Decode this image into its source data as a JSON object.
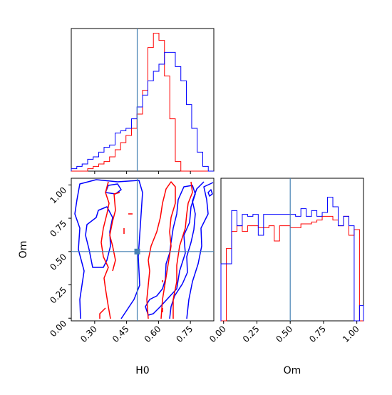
{
  "chart_data": {
    "type": "corner",
    "parameters": [
      "H0",
      "Om"
    ],
    "truths": {
      "H0": 0.5,
      "Om": 0.5
    },
    "truth_color": "#4682b4",
    "series_colors": {
      "red": "#ff0000",
      "blue": "#0000ff"
    },
    "ranges": {
      "H0": [
        0.19,
        0.86
      ],
      "Om": [
        -0.02,
        1.05
      ]
    },
    "panels": [
      {
        "id": "hist-H0",
        "type": "histogram",
        "parameter": "H0",
        "bin_edges": [
          0.19,
          0.216,
          0.241,
          0.267,
          0.293,
          0.319,
          0.344,
          0.37,
          0.396,
          0.422,
          0.447,
          0.473,
          0.499,
          0.525,
          0.55,
          0.576,
          0.602,
          0.628,
          0.653,
          0.679,
          0.705,
          0.731,
          0.756,
          0.782,
          0.808,
          0.834,
          0.86
        ],
        "series": [
          {
            "color": "#ff0000",
            "heights": [
              0,
              0,
              0,
              1,
              2,
              3,
              4,
              6,
              9,
              12,
              15,
              18,
              24,
              34,
              52,
              58,
              55,
              40,
              22,
              4,
              0,
              0,
              0,
              0,
              0,
              0
            ]
          },
          {
            "color": "#0000ff",
            "heights": [
              1,
              2,
              3,
              5,
              6,
              8,
              10,
              11,
              16,
              17,
              18,
              22,
              27,
              32,
              38,
              42,
              45,
              50,
              50,
              44,
              38,
              28,
              18,
              8,
              2,
              0
            ]
          }
        ]
      },
      {
        "id": "contour-H0-Om",
        "type": "contour",
        "x": "H0",
        "y": "Om",
        "series": [
          {
            "color": "#ff0000",
            "levels": [
              "inner",
              "outer"
            ]
          },
          {
            "color": "#0000ff",
            "levels": [
              "inner",
              "middle",
              "outer"
            ]
          }
        ]
      },
      {
        "id": "hist-Om",
        "type": "histogram",
        "parameter": "Om",
        "bin_edges": [
          -0.02,
          0.02,
          0.06,
          0.1,
          0.14,
          0.18,
          0.22,
          0.26,
          0.3,
          0.34,
          0.38,
          0.42,
          0.46,
          0.5,
          0.54,
          0.58,
          0.62,
          0.66,
          0.7,
          0.74,
          0.78,
          0.82,
          0.86,
          0.9,
          0.94,
          0.98,
          1.02,
          1.05
        ],
        "series": [
          {
            "color": "#ff0000",
            "heights": [
              0,
              38,
              47,
              50,
              47,
              50,
              50,
              49,
              49,
              50,
              42,
              50,
              50,
              49,
              49,
              51,
              51,
              52,
              53,
              55,
              55,
              53,
              50,
              55,
              45,
              48,
              0
            ]
          },
          {
            "color": "#0000ff",
            "heights": [
              30,
              30,
              58,
              50,
              56,
              55,
              56,
              45,
              56,
              56,
              56,
              56,
              56,
              56,
              55,
              59,
              55,
              58,
              55,
              57,
              65,
              60,
              50,
              55,
              50,
              0,
              8
            ]
          }
        ]
      }
    ],
    "tick_labels": {
      "H0": [
        "0.30",
        "0.45",
        "0.60",
        "0.75"
      ],
      "Om": [
        "0.00",
        "0.25",
        "0.50",
        "0.75",
        "1.00"
      ]
    },
    "xlabels": {
      "bottom_left": "H0",
      "bottom_right": "Om"
    },
    "ylabel": "Om"
  }
}
